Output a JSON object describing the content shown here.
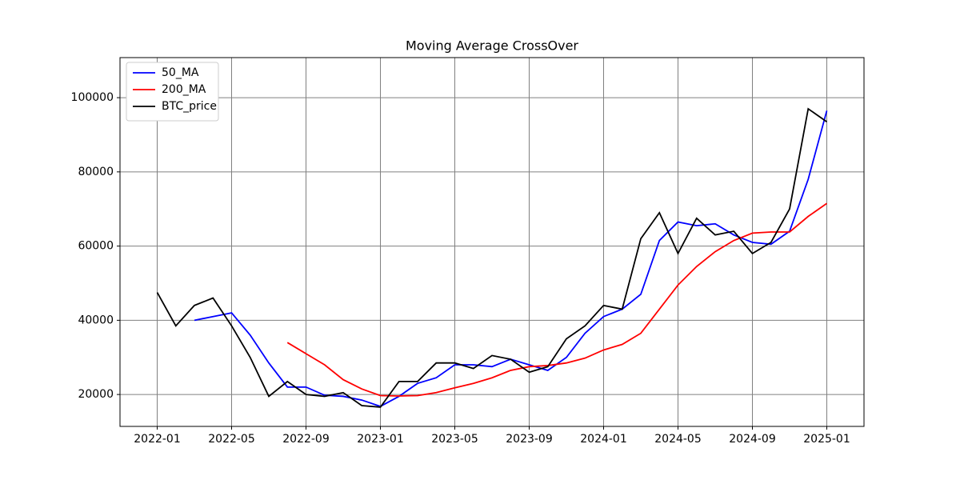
{
  "chart_data": {
    "type": "line",
    "title": "Moving Average CrossOver",
    "x": [
      "2022-01",
      "2022-02",
      "2022-03",
      "2022-04",
      "2022-05",
      "2022-06",
      "2022-07",
      "2022-08",
      "2022-09",
      "2022-10",
      "2022-11",
      "2022-12",
      "2023-01",
      "2023-02",
      "2023-03",
      "2023-04",
      "2023-05",
      "2023-06",
      "2023-07",
      "2023-08",
      "2023-09",
      "2023-10",
      "2023-11",
      "2023-12",
      "2024-01",
      "2024-02",
      "2024-03",
      "2024-04",
      "2024-05",
      "2024-06",
      "2024-07",
      "2024-08",
      "2024-09",
      "2024-10",
      "2024-11",
      "2024-12",
      "2025-01"
    ],
    "series": [
      {
        "name": "50_MA",
        "color": "#0000ff",
        "values": [
          null,
          null,
          40000,
          41000,
          42000,
          36000,
          28500,
          22000,
          22000,
          19800,
          19500,
          18500,
          16800,
          19500,
          23000,
          24500,
          28000,
          28000,
          27500,
          29500,
          28000,
          26500,
          30000,
          36500,
          41000,
          43000,
          47000,
          61500,
          66500,
          65500,
          66000,
          63000,
          61000,
          60500,
          64000,
          78000,
          96500
        ]
      },
      {
        "name": "200_MA",
        "color": "#ff0000",
        "values": [
          null,
          null,
          null,
          null,
          null,
          null,
          null,
          34000,
          31000,
          28000,
          24000,
          21500,
          19700,
          19600,
          19700,
          20500,
          21800,
          23000,
          24500,
          26500,
          27500,
          27800,
          28500,
          29800,
          32000,
          33500,
          36500,
          43000,
          49500,
          54500,
          58500,
          61500,
          63500,
          63800,
          63800,
          68000,
          71500
        ]
      },
      {
        "name": "BTC_price",
        "color": "#000000",
        "values": [
          47500,
          38500,
          44000,
          46000,
          38500,
          30000,
          19500,
          23500,
          20000,
          19500,
          20500,
          17000,
          16600,
          23500,
          23500,
          28500,
          28500,
          27000,
          30500,
          29500,
          26000,
          27500,
          35000,
          38500,
          44000,
          43000,
          62000,
          69000,
          58000,
          67500,
          63000,
          64000,
          58000,
          61000,
          70000,
          97000,
          93500
        ]
      }
    ],
    "xlim": [
      "2021-11",
      "2025-03"
    ],
    "xticks": [
      "2022-01",
      "2022-05",
      "2022-09",
      "2023-01",
      "2023-05",
      "2023-09",
      "2024-01",
      "2024-05",
      "2024-09",
      "2025-01"
    ],
    "ylim": [
      11400,
      110800
    ],
    "yticks": [
      20000,
      40000,
      60000,
      80000,
      100000
    ],
    "grid": true,
    "legend": "upper-left"
  }
}
